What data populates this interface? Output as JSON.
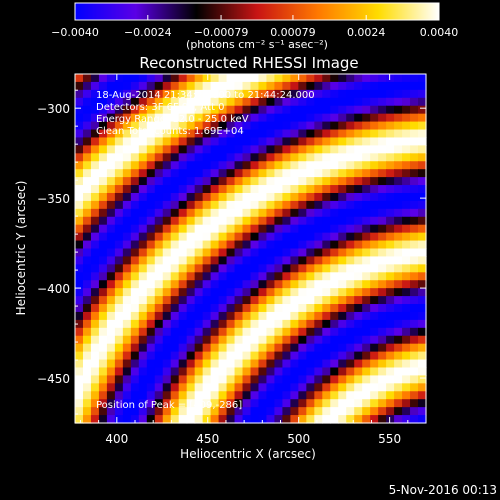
{
  "chart_data": {
    "type": "heatmap",
    "title": "Reconstructed RHESSI Image",
    "xlabel": "Heliocentric X (arcsec)",
    "ylabel": "Heliocentric Y (arcsec)",
    "xlim": [
      377,
      570
    ],
    "ylim": [
      -475,
      -281
    ],
    "xticks": [
      400,
      450,
      500,
      550
    ],
    "xtick_labels": [
      "400",
      "450",
      "500",
      "550"
    ],
    "yticks": [
      -300,
      -350,
      -400,
      -450
    ],
    "ytick_labels": [
      "−300",
      "−350",
      "−400",
      "−450"
    ],
    "colorbar": {
      "range": [
        -0.004,
        0.004
      ],
      "ticks": [
        -0.004,
        -0.0024,
        -0.00079,
        0.00079,
        0.0024,
        0.004
      ],
      "tick_labels": [
        "−0.0040",
        "−0.0024",
        "−0.00079",
        "0.00079",
        "0.0024",
        "0.0040"
      ],
      "units": "(photons cm⁻² s⁻¹ asec⁻²)",
      "colormap": [
        "#0000ff",
        "#5a00e6",
        "#000000",
        "#c81414",
        "#ff7800",
        "#ffdc00",
        "#ffffff"
      ]
    },
    "annotations": [
      "18-Aug-2014 21:34:24.000 to 21:44:24.000",
      "Detectors: 3F 6F 9F, Att 0",
      "Energy Range: 12.0 - 25.0 keV",
      "Clean     Total counts: 1.69E+04"
    ],
    "peak_label": "Position of Peak = [409,-286]",
    "peak": [
      409,
      -286
    ],
    "fringe_pattern": {
      "description_values": "curved fringe arcs, centred low-right",
      "center_x": 600,
      "center_y": -560,
      "wavelength": 62.0,
      "phase": 0.35,
      "amplitude": 0.0042,
      "bright_ridges_y_at_x400": [
        -290,
        -345,
        -425
      ],
      "bright_ridges_y_at_x550": [
        -320,
        -385,
        -450
      ]
    }
  },
  "footer": {
    "timestamp": "5-Nov-2016 00:13"
  }
}
